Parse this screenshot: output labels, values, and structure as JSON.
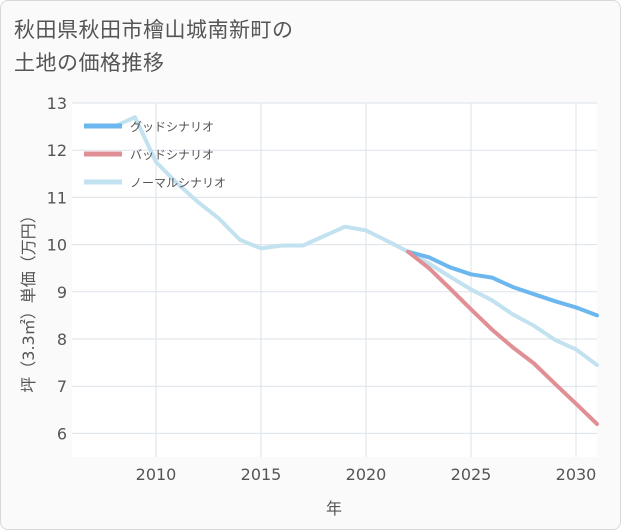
{
  "title_lines": [
    "秋田県秋田市檜山城南新町の",
    "土地の価格推移"
  ],
  "chart_data": {
    "type": "line",
    "title": "秋田県秋田市檜山城南新町の土地の価格推移",
    "xlabel": "年",
    "ylabel": "坪（3.3㎡）単価（万円）",
    "xlim": [
      2006,
      2031
    ],
    "ylim": [
      5.5,
      13
    ],
    "xticks": [
      2010,
      2015,
      2020,
      2025,
      2030
    ],
    "yticks": [
      6,
      7,
      8,
      9,
      10,
      11,
      12,
      13
    ],
    "grid": true,
    "legend_position": "top-left",
    "series": [
      {
        "name": "グッドシナリオ",
        "color": "#6cb8ee",
        "x": [
          2022,
          2023,
          2024,
          2025,
          2026,
          2027,
          2028,
          2029,
          2030,
          2031
        ],
        "y": [
          9.85,
          9.73,
          9.52,
          9.37,
          9.3,
          9.1,
          8.95,
          8.8,
          8.67,
          8.5
        ]
      },
      {
        "name": "バッドシナリオ",
        "color": "#e09095",
        "x": [
          2022,
          2023,
          2024,
          2025,
          2026,
          2027,
          2028,
          2029,
          2030,
          2031
        ],
        "y": [
          9.85,
          9.5,
          9.07,
          8.63,
          8.2,
          7.82,
          7.48,
          7.05,
          6.63,
          6.2
        ]
      },
      {
        "name": "ノーマルシナリオ",
        "color": "#c2e2f0",
        "x": [
          2008,
          2009,
          2010,
          2011,
          2012,
          2013,
          2014,
          2015,
          2016,
          2017,
          2018,
          2019,
          2020,
          2021,
          2022,
          2023,
          2024,
          2025,
          2026,
          2027,
          2028,
          2029,
          2030,
          2031
        ],
        "y": [
          12.5,
          12.7,
          11.75,
          11.3,
          10.9,
          10.55,
          10.1,
          9.92,
          9.98,
          9.98,
          10.18,
          10.38,
          10.3,
          10.08,
          9.85,
          9.6,
          9.32,
          9.05,
          8.82,
          8.52,
          8.28,
          7.98,
          7.78,
          7.45
        ]
      }
    ]
  }
}
